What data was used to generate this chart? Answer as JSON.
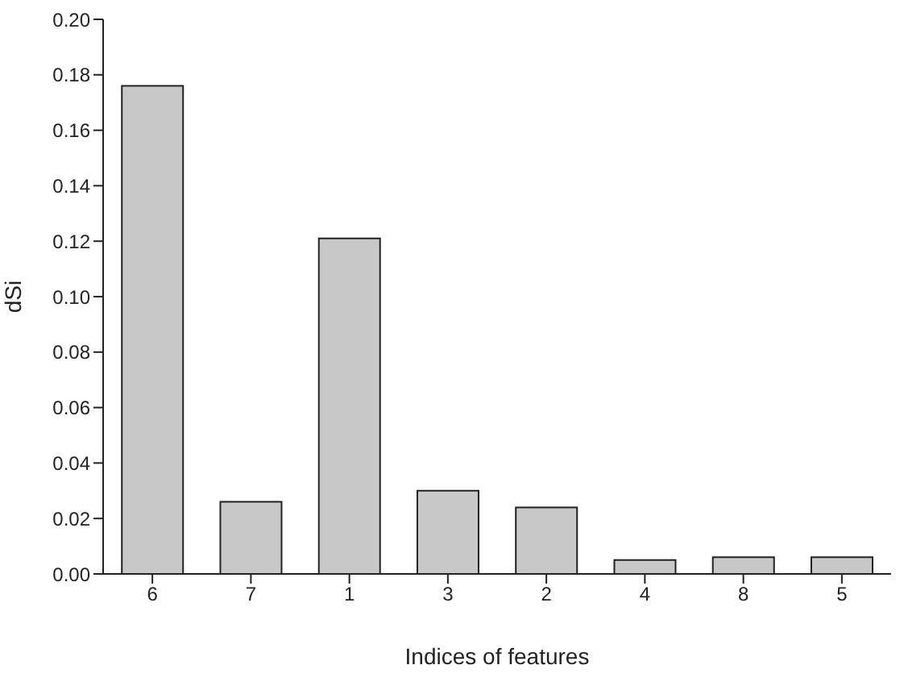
{
  "chart_data": {
    "type": "bar",
    "xlabel": "Indices of features",
    "ylabel": "dSi",
    "categories": [
      "6",
      "7",
      "1",
      "3",
      "2",
      "4",
      "8",
      "5"
    ],
    "values": [
      0.176,
      0.026,
      0.121,
      0.03,
      0.024,
      0.005,
      0.006,
      0.006
    ],
    "color": "#c8c8c8",
    "ylim": [
      0,
      0.2
    ],
    "yticks": [
      {
        "value": 0,
        "label": "0.00"
      },
      {
        "value": 0.02,
        "label": "0.02"
      },
      {
        "value": 0.04,
        "label": "0.04"
      },
      {
        "value": 0.06,
        "label": "0.06"
      },
      {
        "value": 0.08,
        "label": "0.08"
      },
      {
        "value": 0.1,
        "label": "0.10"
      },
      {
        "value": 0.12,
        "label": "0.12"
      },
      {
        "value": 0.14,
        "label": "0.14"
      },
      {
        "value": 0.16,
        "label": "0.16"
      },
      {
        "value": 0.18,
        "label": "0.18"
      },
      {
        "value": 0.2,
        "label": "0.20"
      }
    ],
    "grid": false,
    "legend": false
  }
}
